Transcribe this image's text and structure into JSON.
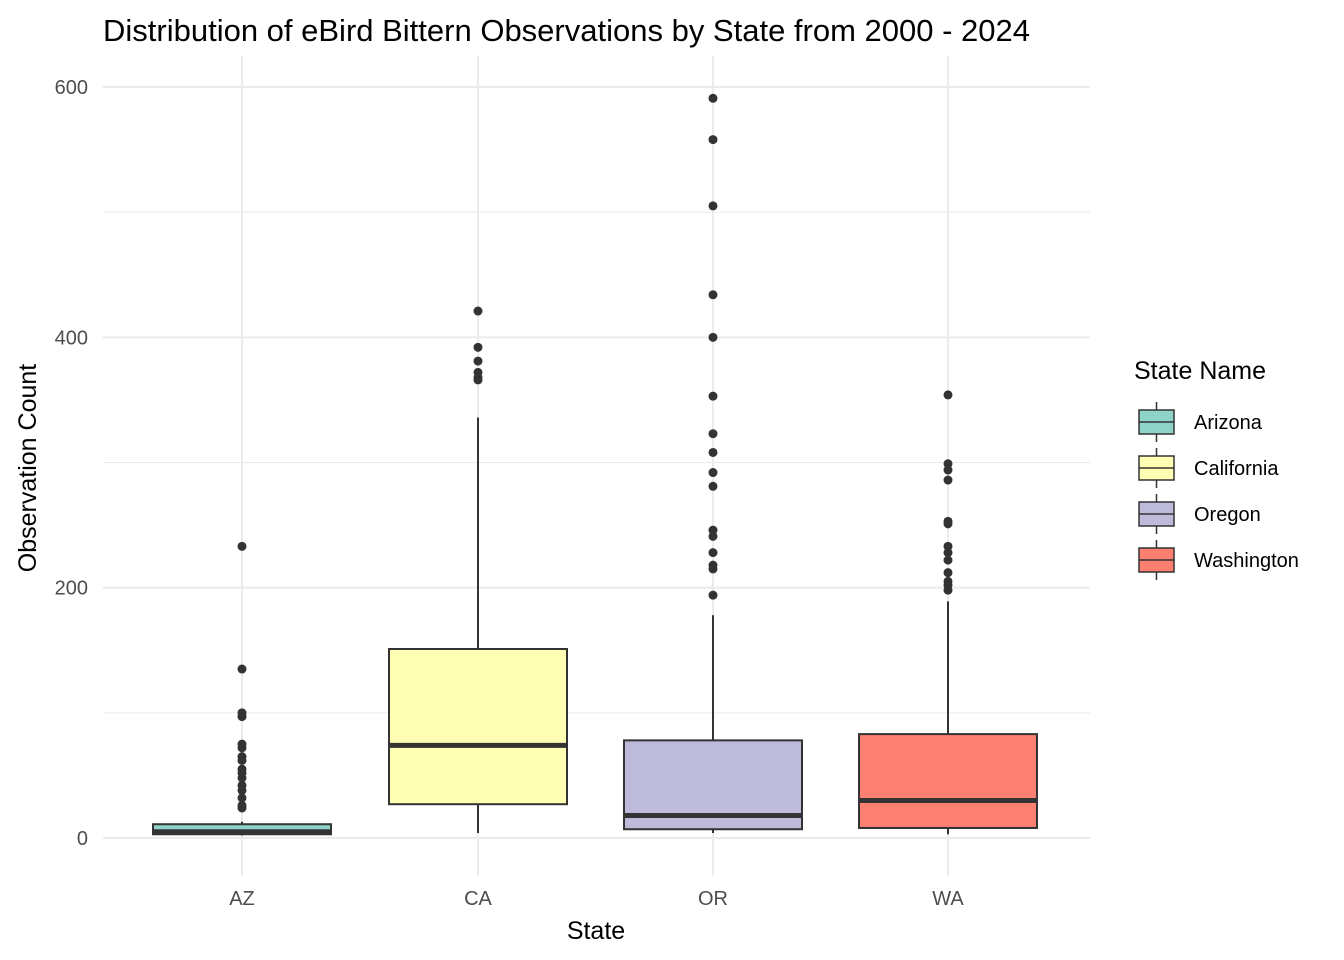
{
  "chart_data": {
    "type": "box",
    "title": "Distribution of eBird Bittern Observations by State from 2000 - 2024",
    "xlabel": "State",
    "ylabel": "Observation Count",
    "ylim": [
      -30,
      625
    ],
    "yticks": [
      0,
      200,
      400,
      600
    ],
    "ytick_labels": [
      "0",
      "200",
      "400",
      "600"
    ],
    "grid": true,
    "legend": {
      "title": "State Name",
      "position": "right"
    },
    "categories": [
      "AZ",
      "CA",
      "OR",
      "WA"
    ],
    "series": [
      {
        "name": "Arizona",
        "category": "AZ",
        "color": "#8DD3C7",
        "whisker_low": 2,
        "q1": 3,
        "median": 5,
        "q3": 11,
        "whisker_high": 13,
        "outliers": [
          24,
          26,
          32,
          38,
          42,
          48,
          52,
          55,
          62,
          65,
          72,
          75,
          97,
          100,
          135,
          233
        ]
      },
      {
        "name": "California",
        "category": "CA",
        "color": "#FFFFB3",
        "whisker_low": 4,
        "q1": 27,
        "median": 74,
        "q3": 151,
        "whisker_high": 336,
        "outliers": [
          366,
          368,
          372,
          381,
          392,
          421
        ]
      },
      {
        "name": "Oregon",
        "category": "OR",
        "color": "#BEBADA",
        "whisker_low": 4,
        "q1": 7,
        "median": 18,
        "q3": 78,
        "whisker_high": 178,
        "outliers": [
          194,
          215,
          218,
          228,
          241,
          246,
          281,
          292,
          308,
          323,
          353,
          400,
          434,
          505,
          558,
          591
        ]
      },
      {
        "name": "Washington",
        "category": "WA",
        "color": "#FB8072",
        "whisker_low": 3,
        "q1": 8,
        "median": 30,
        "q3": 83,
        "whisker_high": 189,
        "outliers": [
          198,
          202,
          205,
          212,
          222,
          228,
          233,
          251,
          253,
          286,
          294,
          299,
          354
        ]
      }
    ]
  }
}
